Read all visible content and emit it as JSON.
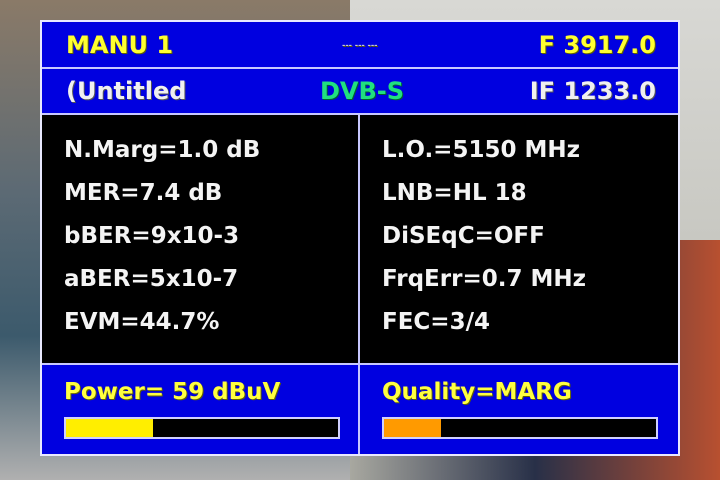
{
  "header": {
    "mode": "MANU 1",
    "dots": "--- --- ---",
    "frequency": "F 3917.0",
    "name": "(Untitled",
    "standard": "DVB-S",
    "if_freq": "IF 1233.0"
  },
  "left": [
    "N.Marg=1.0 dB",
    "MER=7.4 dB",
    "bBER=9x10-3",
    "aBER=5x10-7",
    "EVM=44.7%"
  ],
  "right": [
    "L.O.=5150 MHz",
    "LNB=HL 18",
    "DiSEqC=OFF",
    "FrqErr=0.7 MHz",
    "FEC=3/4"
  ],
  "power": {
    "label": "Power=  59 dBuV",
    "level_percent": 32,
    "color": "#ffee00"
  },
  "quality": {
    "label": "Quality=MARG",
    "level_percent": 21,
    "color": "#ff9a00"
  },
  "colors": {
    "panel": "#0000e0",
    "border": "#e8e8ff",
    "text": "#ffff30"
  }
}
